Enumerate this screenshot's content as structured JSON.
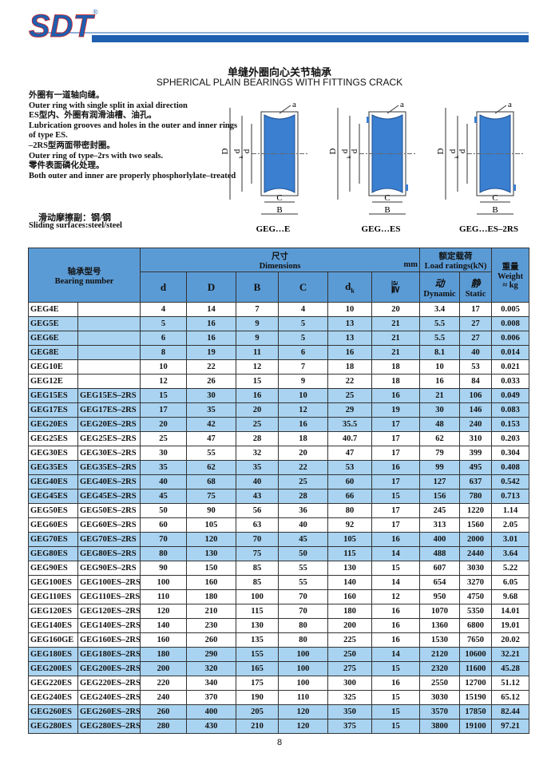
{
  "logo": {
    "text": "SDT",
    "registered": "®"
  },
  "title": {
    "cn": "单缝外圈向心关节轴承",
    "en": "SPHERICAL PLAIN BEARINGS WITH FITTINGS CRACK"
  },
  "description": [
    "外圈有一道轴向缝。",
    "Outer ring with single split in axial direction",
    "ES型内、外圈有润滑油槽、油孔。",
    "Lubrication grooves and holes in the outer and inner rings",
    "of type ES.",
    "–2RS型两面带密封圈。",
    "Outer ring of type–2rs with two seals.",
    "零件表面磷化处理。",
    "Both outer and inner are properly phosphorlylate–treated"
  ],
  "sliding": [
    "滑动摩擦副：钢/钢",
    "Sliding surfaces:steel/steel"
  ],
  "diagram": {
    "a": "a",
    "D": "D",
    "dk": "d",
    "dk_sub": "k",
    "d": "d",
    "C": "C",
    "B": "B",
    "captions": [
      "GEG…E",
      "GEG…ES",
      "GEG…ES–2RS"
    ]
  },
  "table": {
    "header": {
      "bearing_cn": "轴承型号",
      "bearing_en": "Bearing number",
      "dims_cn": "尺寸",
      "dims_en": "Dimensions",
      "unit": "mm",
      "load_cn": "额定载荷",
      "load_en": "Load ratings(kN)",
      "weight_cn": "重量",
      "weight_en": "Weight",
      "cols": [
        "d",
        "D",
        "B",
        "C"
      ],
      "dk": "d",
      "dk_sub": "k",
      "a": "a",
      "a_sym": "≧",
      "dynamic_cn": "动",
      "dynamic_en": "Dynamic",
      "static_cn": "静",
      "static_en": "Static",
      "approx": "≈",
      "kg": "kg"
    },
    "rows": [
      [
        "GEG4E",
        null,
        4,
        14,
        7,
        4,
        10,
        20,
        3.4,
        17,
        0.005
      ],
      [
        "GEG5E",
        null,
        5,
        16,
        9,
        5,
        13,
        21,
        5.5,
        27,
        0.008
      ],
      [
        "GEG6E",
        null,
        6,
        16,
        9,
        5,
        13,
        21,
        5.5,
        27,
        0.006
      ],
      [
        "GEG8E",
        null,
        8,
        19,
        11,
        6,
        16,
        21,
        8.1,
        40,
        0.014
      ],
      [
        "GEG10E",
        null,
        10,
        22,
        12,
        7,
        18,
        18,
        10,
        53,
        0.021
      ],
      [
        "GEG12E",
        null,
        12,
        26,
        15,
        9,
        22,
        18,
        16,
        84,
        0.033
      ],
      [
        "GEG15ES",
        "GEG15ES–2RS",
        15,
        30,
        16,
        10,
        25,
        16,
        21,
        106,
        0.049
      ],
      [
        "GEG17ES",
        "GEG17ES–2RS",
        17,
        35,
        20,
        12,
        29,
        19,
        30,
        146,
        0.083
      ],
      [
        "GEG20ES",
        "GEG20ES–2RS",
        20,
        42,
        25,
        16,
        35.5,
        17,
        48,
        240,
        0.153
      ],
      [
        "GEG25ES",
        "GEG25ES–2RS",
        25,
        47,
        28,
        18,
        40.7,
        17,
        62,
        310,
        0.203
      ],
      [
        "GEG30ES",
        "GEG30ES–2RS",
        30,
        55,
        32,
        20,
        47,
        17,
        79,
        399,
        0.304
      ],
      [
        "GEG35ES",
        "GEG35ES–2RS",
        35,
        62,
        35,
        22,
        53,
        16,
        99,
        495,
        0.408
      ],
      [
        "GEG40ES",
        "GEG40ES–2RS",
        40,
        68,
        40,
        25,
        60,
        17,
        127,
        637,
        0.542
      ],
      [
        "GEG45ES",
        "GEG45ES–2RS",
        45,
        75,
        43,
        28,
        66,
        15,
        156,
        780,
        0.713
      ],
      [
        "GEG50ES",
        "GEG50ES–2RS",
        50,
        90,
        56,
        36,
        80,
        17,
        245,
        1220,
        1.14
      ],
      [
        "GEG60ES",
        "GEG60ES–2RS",
        60,
        105,
        63,
        40,
        92,
        17,
        313,
        1560,
        2.05
      ],
      [
        "GEG70ES",
        "GEG70ES–2RS",
        70,
        120,
        70,
        45,
        105,
        16,
        400,
        2000,
        3.01
      ],
      [
        "GEG80ES",
        "GEG80ES–2RS",
        80,
        130,
        75,
        50,
        115,
        14,
        488,
        2440,
        3.64
      ],
      [
        "GEG90ES",
        "GEG90ES–2RS",
        90,
        150,
        85,
        55,
        130,
        15,
        607,
        3030,
        5.22
      ],
      [
        "GEG100ES",
        "GEG100ES–2RS",
        100,
        160,
        85,
        55,
        140,
        14,
        654,
        3270,
        6.05
      ],
      [
        "GEG110ES",
        "GEG110ES–2RS",
        110,
        180,
        100,
        70,
        160,
        12,
        950,
        4750,
        9.68
      ],
      [
        "GEG120ES",
        "GEG120ES–2RS",
        120,
        210,
        115,
        70,
        180,
        16,
        1070,
        5350,
        14.01
      ],
      [
        "GEG140ES",
        "GEG140ES–2RS",
        140,
        230,
        130,
        80,
        200,
        16,
        1360,
        6800,
        19.01
      ],
      [
        "GEG160GE",
        "GEG160ES–2RS",
        160,
        260,
        135,
        80,
        225,
        16,
        1530,
        7650,
        20.02
      ],
      [
        "GEG180ES",
        "GEG180ES–2RS",
        180,
        290,
        155,
        100,
        250,
        14,
        2120,
        10600,
        32.21
      ],
      [
        "GEG200ES",
        "GEG200ES–2RS",
        200,
        320,
        165,
        100,
        275,
        15,
        2320,
        11600,
        45.28
      ],
      [
        "GEG220ES",
        "GEG220ES–2RS",
        220,
        340,
        175,
        100,
        300,
        16,
        2550,
        12700,
        51.12
      ],
      [
        "GEG240ES",
        "GEG240ES–2RS",
        240,
        370,
        190,
        110,
        325,
        15,
        3030,
        15190,
        65.12
      ],
      [
        "GEG260ES",
        "GEG260ES–2RS",
        260,
        400,
        205,
        120,
        350,
        15,
        3570,
        17850,
        82.44
      ],
      [
        "GEG280ES",
        "GEG280ES–2RS",
        280,
        430,
        210,
        120,
        375,
        15,
        3800,
        19100,
        97.21
      ]
    ]
  },
  "page_number": "8"
}
